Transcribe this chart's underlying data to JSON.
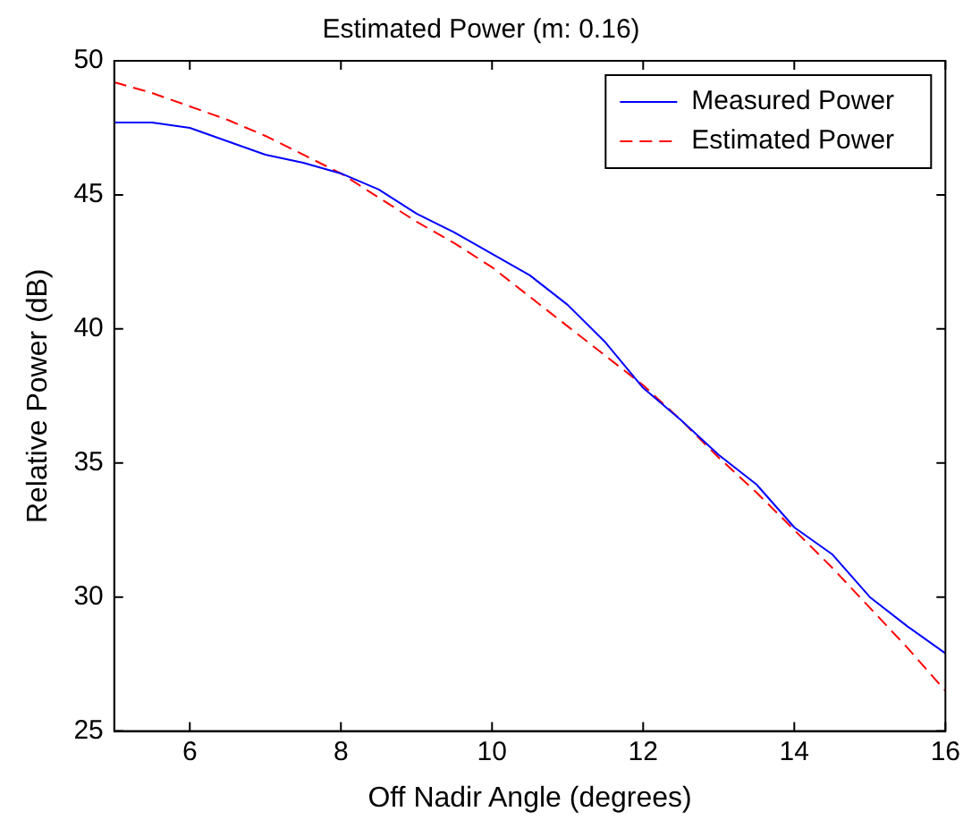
{
  "chart_data": {
    "type": "line",
    "title": "Estimated Power (m: 0.16)",
    "xlabel": "Off Nadir Angle (degrees)",
    "ylabel": "Relative Power (dB)",
    "x": [
      5,
      5.5,
      6,
      6.5,
      7,
      7.5,
      8,
      8.5,
      9,
      9.5,
      10,
      10.5,
      11,
      11.5,
      12,
      12.5,
      13,
      13.5,
      14,
      14.5,
      15,
      15.5,
      16
    ],
    "series": [
      {
        "name": "Measured Power",
        "color": "#0000ff",
        "line_style": "solid",
        "values": [
          47.7,
          47.7,
          47.5,
          47.0,
          46.5,
          46.2,
          45.8,
          45.2,
          44.3,
          43.6,
          42.8,
          42.0,
          40.9,
          39.5,
          37.8,
          36.6,
          35.3,
          34.2,
          32.6,
          31.6,
          30.0,
          28.9,
          27.9
        ]
      },
      {
        "name": "Estimated Power",
        "color": "#ff0000",
        "line_style": "dashed",
        "values": [
          49.2,
          48.8,
          48.3,
          47.8,
          47.2,
          46.5,
          45.8,
          44.9,
          44.0,
          43.2,
          42.3,
          41.2,
          40.1,
          39.0,
          37.9,
          36.6,
          35.2,
          33.9,
          32.5,
          31.1,
          29.6,
          28.1,
          26.5
        ]
      }
    ],
    "xlim": [
      5,
      16
    ],
    "xticks": [
      6,
      8,
      10,
      12,
      14,
      16
    ],
    "ylim": [
      25,
      50
    ],
    "yticks": [
      25,
      30,
      35,
      40,
      45,
      50
    ],
    "grid": false,
    "legend": "top right",
    "marker": "none"
  }
}
